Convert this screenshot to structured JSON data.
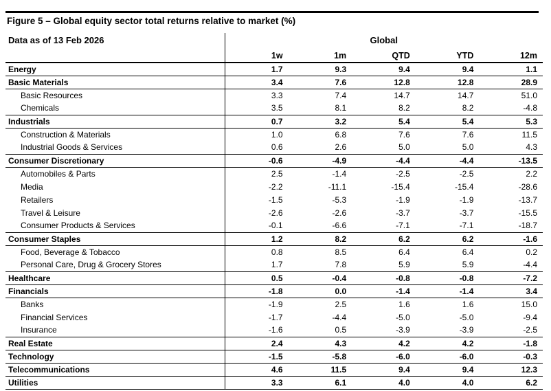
{
  "figure": {
    "title": "Figure 5 – Global equity sector total returns relative to market (%)"
  },
  "table": {
    "date_label": "Data as of 13 Feb 2026",
    "group_header": "Global",
    "columns": [
      "1w",
      "1m",
      "QTD",
      "YTD",
      "12m"
    ],
    "rows": [
      {
        "label": "Energy",
        "bold": true,
        "indent": false,
        "values": [
          "1.7",
          "9.3",
          "9.4",
          "9.4",
          "1.1"
        ]
      },
      {
        "label": "Basic Materials",
        "bold": true,
        "indent": false,
        "values": [
          "3.4",
          "7.6",
          "12.8",
          "12.8",
          "28.9"
        ]
      },
      {
        "label": "Basic Resources",
        "bold": false,
        "indent": true,
        "values": [
          "3.3",
          "7.4",
          "14.7",
          "14.7",
          "51.0"
        ]
      },
      {
        "label": "Chemicals",
        "bold": false,
        "indent": true,
        "values": [
          "3.5",
          "8.1",
          "8.2",
          "8.2",
          "-4.8"
        ]
      },
      {
        "label": "Industrials",
        "bold": true,
        "indent": false,
        "values": [
          "0.7",
          "3.2",
          "5.4",
          "5.4",
          "5.3"
        ]
      },
      {
        "label": "Construction & Materials",
        "bold": false,
        "indent": true,
        "values": [
          "1.0",
          "6.8",
          "7.6",
          "7.6",
          "11.5"
        ]
      },
      {
        "label": "Industrial Goods & Services",
        "bold": false,
        "indent": true,
        "values": [
          "0.6",
          "2.6",
          "5.0",
          "5.0",
          "4.3"
        ]
      },
      {
        "label": "Consumer Discretionary",
        "bold": true,
        "indent": false,
        "values": [
          "-0.6",
          "-4.9",
          "-4.4",
          "-4.4",
          "-13.5"
        ]
      },
      {
        "label": "Automobiles & Parts",
        "bold": false,
        "indent": true,
        "values": [
          "2.5",
          "-1.4",
          "-2.5",
          "-2.5",
          "2.2"
        ]
      },
      {
        "label": "Media",
        "bold": false,
        "indent": true,
        "values": [
          "-2.2",
          "-11.1",
          "-15.4",
          "-15.4",
          "-28.6"
        ]
      },
      {
        "label": "Retailers",
        "bold": false,
        "indent": true,
        "values": [
          "-1.5",
          "-5.3",
          "-1.9",
          "-1.9",
          "-13.7"
        ]
      },
      {
        "label": "Travel & Leisure",
        "bold": false,
        "indent": true,
        "values": [
          "-2.6",
          "-2.6",
          "-3.7",
          "-3.7",
          "-15.5"
        ]
      },
      {
        "label": "Consumer Products & Services",
        "bold": false,
        "indent": true,
        "values": [
          "-0.1",
          "-6.6",
          "-7.1",
          "-7.1",
          "-18.7"
        ]
      },
      {
        "label": "Consumer Staples",
        "bold": true,
        "indent": false,
        "values": [
          "1.2",
          "8.2",
          "6.2",
          "6.2",
          "-1.6"
        ]
      },
      {
        "label": "Food, Beverage & Tobacco",
        "bold": false,
        "indent": true,
        "values": [
          "0.8",
          "8.5",
          "6.4",
          "6.4",
          "0.2"
        ]
      },
      {
        "label": "Personal Care, Drug & Grocery Stores",
        "bold": false,
        "indent": true,
        "values": [
          "1.7",
          "7.8",
          "5.9",
          "5.9",
          "-4.4"
        ]
      },
      {
        "label": "Healthcare",
        "bold": true,
        "indent": false,
        "values": [
          "0.5",
          "-0.4",
          "-0.8",
          "-0.8",
          "-7.2"
        ]
      },
      {
        "label": "Financials",
        "bold": true,
        "indent": false,
        "values": [
          "-1.8",
          "0.0",
          "-1.4",
          "-1.4",
          "3.4"
        ]
      },
      {
        "label": "Banks",
        "bold": false,
        "indent": true,
        "values": [
          "-1.9",
          "2.5",
          "1.6",
          "1.6",
          "15.0"
        ]
      },
      {
        "label": "Financial Services",
        "bold": false,
        "indent": true,
        "values": [
          "-1.7",
          "-4.4",
          "-5.0",
          "-5.0",
          "-9.4"
        ]
      },
      {
        "label": "Insurance",
        "bold": false,
        "indent": true,
        "values": [
          "-1.6",
          "0.5",
          "-3.9",
          "-3.9",
          "-2.5"
        ]
      },
      {
        "label": "Real Estate",
        "bold": true,
        "indent": false,
        "values": [
          "2.4",
          "4.3",
          "4.2",
          "4.2",
          "-1.8"
        ]
      },
      {
        "label": "Technology",
        "bold": true,
        "indent": false,
        "values": [
          "-1.5",
          "-5.8",
          "-6.0",
          "-6.0",
          "-0.3"
        ]
      },
      {
        "label": "Telecommunications",
        "bold": true,
        "indent": false,
        "values": [
          "4.6",
          "11.5",
          "9.4",
          "9.4",
          "12.3"
        ]
      },
      {
        "label": "Utilities",
        "bold": true,
        "indent": false,
        "values": [
          "3.3",
          "6.1",
          "4.0",
          "4.0",
          "6.2"
        ]
      }
    ]
  }
}
